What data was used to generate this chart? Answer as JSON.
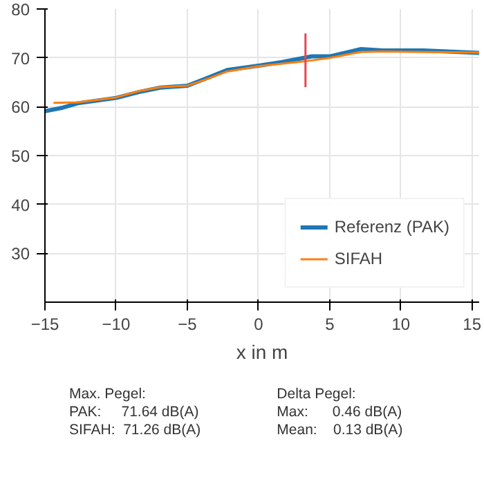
{
  "chart_data": {
    "type": "line",
    "xlabel": "x in m",
    "xlim": [
      -15,
      15.5
    ],
    "xticks": [
      {
        "value": -15,
        "label": "−15"
      },
      {
        "value": -10,
        "label": "−10"
      },
      {
        "value": -5,
        "label": "−5"
      },
      0,
      5,
      10,
      15
    ],
    "ylim": [
      20,
      80
    ],
    "yticks": [
      30,
      40,
      50,
      60,
      70,
      80
    ],
    "grid": true,
    "legend": "bottom right",
    "line_style": "solid",
    "series": [
      {
        "name": "Referenz (PAK)",
        "color": "#1f77b4",
        "x": [
          -15,
          -13.75,
          -12.7,
          -10,
          -8.4,
          -6.9,
          -5,
          -3.75,
          -2.2,
          0,
          1.6,
          3.75,
          5,
          7.2,
          8.75,
          11.6,
          15.5
        ],
        "values": [
          59.1,
          59.8,
          60.7,
          61.8,
          63.0,
          63.9,
          64.3,
          65.7,
          67.5,
          68.4,
          69.1,
          70.3,
          70.3,
          71.8,
          71.5,
          71.5,
          71.0
        ]
      },
      {
        "name": "SIFAH",
        "color": "#ff7f0e",
        "x": [
          -14.4,
          -12.7,
          -10,
          -8.4,
          -6.9,
          -5,
          -3.75,
          -2.2,
          0,
          1.6,
          3.3,
          5,
          7.2,
          8.75,
          11.6,
          15.5
        ],
        "values": [
          60.8,
          60.9,
          61.9,
          63.2,
          64.0,
          64.3,
          65.5,
          67.2,
          68.3,
          68.8,
          69.3,
          70.0,
          71.2,
          71.3,
          71.2,
          71.1
        ]
      },
      {
        "color": "#e8454f",
        "x": [
          3.3,
          3.3
        ],
        "values": [
          64,
          75
        ]
      }
    ],
    "annotations": [
      "Max. Pegel:",
      "PAK:     71.64 dB(A)",
      "SIFAH:  71.26 dB(A)",
      "Delta Pegel:",
      "Max:      0.46 dB(A)",
      "Mean:    0.13 dB(A)"
    ]
  }
}
